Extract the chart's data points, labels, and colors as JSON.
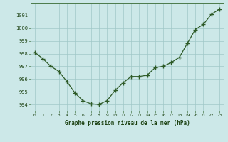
{
  "x": [
    0,
    1,
    2,
    3,
    4,
    5,
    6,
    7,
    8,
    9,
    10,
    11,
    12,
    13,
    14,
    15,
    16,
    17,
    18,
    19,
    20,
    21,
    22,
    23
  ],
  "y": [
    998.1,
    997.6,
    997.0,
    996.6,
    995.8,
    994.9,
    994.3,
    994.05,
    994.0,
    994.3,
    995.1,
    995.7,
    996.2,
    996.2,
    996.3,
    996.9,
    997.0,
    997.3,
    997.7,
    998.8,
    999.9,
    1000.3,
    1001.1,
    1001.5
  ],
  "line_color": "#2d5a27",
  "marker_color": "#2d5a27",
  "bg_color": "#cce8e8",
  "grid_color": "#a0c8c8",
  "xlabel": "Graphe pression niveau de la mer (hPa)",
  "xlabel_color": "#1a4010",
  "tick_color": "#1a4010",
  "spine_color": "#4a7a4a",
  "ylim": [
    993.5,
    1002.0
  ],
  "yticks": [
    994,
    995,
    996,
    997,
    998,
    999,
    1000,
    1001
  ],
  "xticks": [
    0,
    1,
    2,
    3,
    4,
    5,
    6,
    7,
    8,
    9,
    10,
    11,
    12,
    13,
    14,
    15,
    16,
    17,
    18,
    19,
    20,
    21,
    22,
    23
  ]
}
